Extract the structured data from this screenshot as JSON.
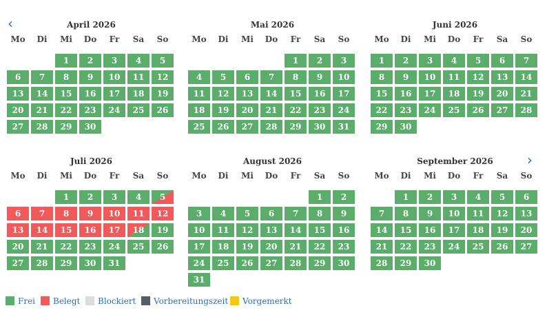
{
  "nav": {
    "prev_icon": "‹",
    "next_icon": "›"
  },
  "weekday_labels": [
    "Mo",
    "Di",
    "Mi",
    "Do",
    "Fr",
    "Sa",
    "So"
  ],
  "colors": {
    "frei": "#5cad6b",
    "belegt": "#f05a5a",
    "blockiert": "#dcdcdc",
    "vorbereitungszeit": "#555d66",
    "vorgemerkt": "#f5c518"
  },
  "months": [
    {
      "title": "April 2026",
      "offset": 2,
      "days": 30,
      "belegt": [],
      "half_in": [],
      "half_out": []
    },
    {
      "title": "Mai 2026",
      "offset": 4,
      "days": 31,
      "belegt": [],
      "half_in": [],
      "half_out": []
    },
    {
      "title": "Juni 2026",
      "offset": 0,
      "days": 30,
      "belegt": [],
      "half_in": [],
      "half_out": []
    },
    {
      "title": "Juli 2026",
      "offset": 2,
      "days": 31,
      "belegt": [
        6,
        7,
        8,
        9,
        10,
        11,
        12,
        13,
        14,
        15,
        16,
        17
      ],
      "half_in": [
        5
      ],
      "half_out": [
        18
      ]
    },
    {
      "title": "August 2026",
      "offset": 5,
      "days": 31,
      "belegt": [],
      "half_in": [],
      "half_out": []
    },
    {
      "title": "September 2026",
      "offset": 1,
      "days": 30,
      "belegt": [],
      "half_in": [],
      "half_out": []
    }
  ],
  "legend": [
    {
      "label": "Frei",
      "color_key": "frei"
    },
    {
      "label": "Belegt",
      "color_key": "belegt"
    },
    {
      "label": "Blockiert",
      "color_key": "blockiert"
    },
    {
      "label": "Vorbereitungszeit",
      "color_key": "vorbereitungszeit"
    },
    {
      "label": "Vorgemerkt",
      "color_key": "vorgemerkt"
    }
  ]
}
